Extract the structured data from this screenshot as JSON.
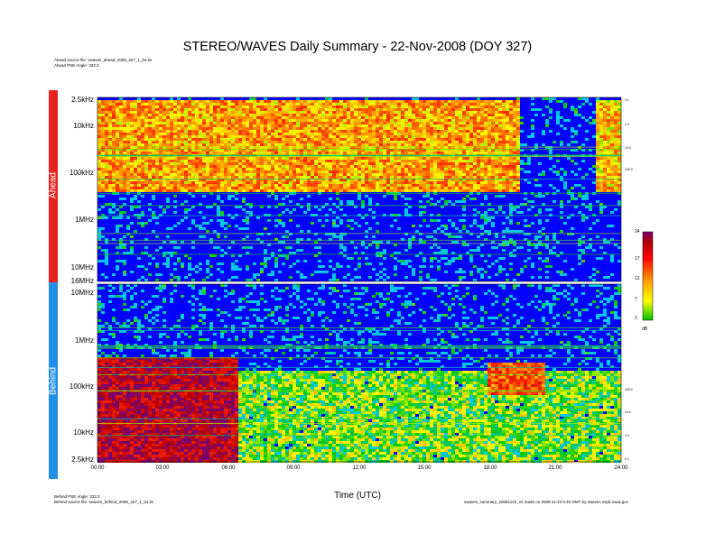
{
  "title": "STEREO/WAVES Daily Summary - 22-Nov-2008 (DOY 327)",
  "header_notes": [
    "Ahead source file: swaves_ahead_2008_327_1_04.lin",
    "Ahead PSE Angle: 333.3"
  ],
  "footer_notes": [
    "Behind PSE Angle: 333.3",
    "Behind source file: swaves_behind_2008_327_1_04.lin"
  ],
  "footer_right": "swaves_summary_20081122_v2 made on 2008-11-23 0:40 GMT by swaves.sspb.nasa.gov",
  "panels": {
    "ahead": {
      "label": "Ahead",
      "color": "#e8231f"
    },
    "behind": {
      "label": "Behind",
      "color": "#1f8fe8"
    }
  },
  "colorbar": {
    "ticks": [
      "24",
      "17",
      "12",
      "7",
      "2"
    ],
    "unit": "dB"
  },
  "chart_data": {
    "type": "heatmap",
    "title": "STEREO/WAVES Daily Summary - 22-Nov-2008 (DOY 327)",
    "xlabel": "Time (UTC)",
    "x_ticks": [
      "00:00",
      "03:00",
      "06:00",
      "09:00",
      "12:00",
      "15:00",
      "18:00",
      "21:00",
      "24:00"
    ],
    "xlim_hours": [
      0,
      24
    ],
    "ahead_y_ticks": [
      "2.5kHz",
      "10kHz",
      "100kHz",
      "1MHz",
      "10MHz",
      "16MHz"
    ],
    "behind_y_ticks": [
      "10MHz",
      "1MHz",
      "100kHz",
      "10kHz",
      "2.5kHz"
    ],
    "ahead_right_ticks": [
      "0.1",
      "1.0",
      "10.0",
      "100.0"
    ],
    "behind_right_ticks": [
      "100.0",
      "10.0",
      "1.0",
      "0.1"
    ],
    "colorbar_range_db": [
      2,
      24
    ],
    "ahead_features": [
      {
        "from_h": 0,
        "to_h": 19.3,
        "top_freq": "2.5kHz",
        "bottom_freq": "200kHz",
        "level_db": 13
      },
      {
        "from_h": 22.7,
        "to_h": 24,
        "top_freq": "2.5kHz",
        "bottom_freq": "200kHz",
        "level_db": 12
      },
      {
        "from_h": 19.3,
        "to_h": 22.7,
        "note": "data gap / low level",
        "level_db": 3
      }
    ],
    "behind_features": [
      {
        "from_h": 0,
        "to_h": 6.4,
        "top_freq": "400kHz",
        "bottom_freq": "2.5kHz",
        "level_db": 22
      },
      {
        "from_h": 17.8,
        "to_h": 20.5,
        "top_freq": "300kHz",
        "bottom_freq": "60kHz",
        "level_db": 16
      },
      {
        "from_h": 6.4,
        "to_h": 24,
        "top_freq": "200kHz",
        "bottom_freq": "2.5kHz",
        "level_db": 8
      }
    ]
  }
}
